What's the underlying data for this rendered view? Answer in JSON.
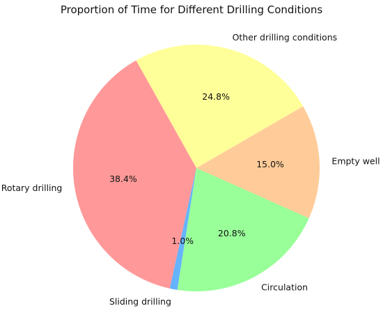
{
  "chart_data": {
    "type": "pie",
    "title": "Proportion of Time for Different Drilling Conditions",
    "categories": [
      "Other drilling conditions",
      "Rotary drilling",
      "Sliding drilling",
      "Circulation",
      "Empty well"
    ],
    "values": [
      24.8,
      38.4,
      1.0,
      20.8,
      15.0
    ],
    "value_labels": [
      "24.8%",
      "38.4%",
      "1.0%",
      "20.8%",
      "15.0%"
    ],
    "colors": [
      "#ffff99",
      "#ff9999",
      "#66b3ff",
      "#99ff99",
      "#ffcc99"
    ],
    "start_angle_deg": 30,
    "direction": "counterclockwise",
    "legend": "none"
  }
}
